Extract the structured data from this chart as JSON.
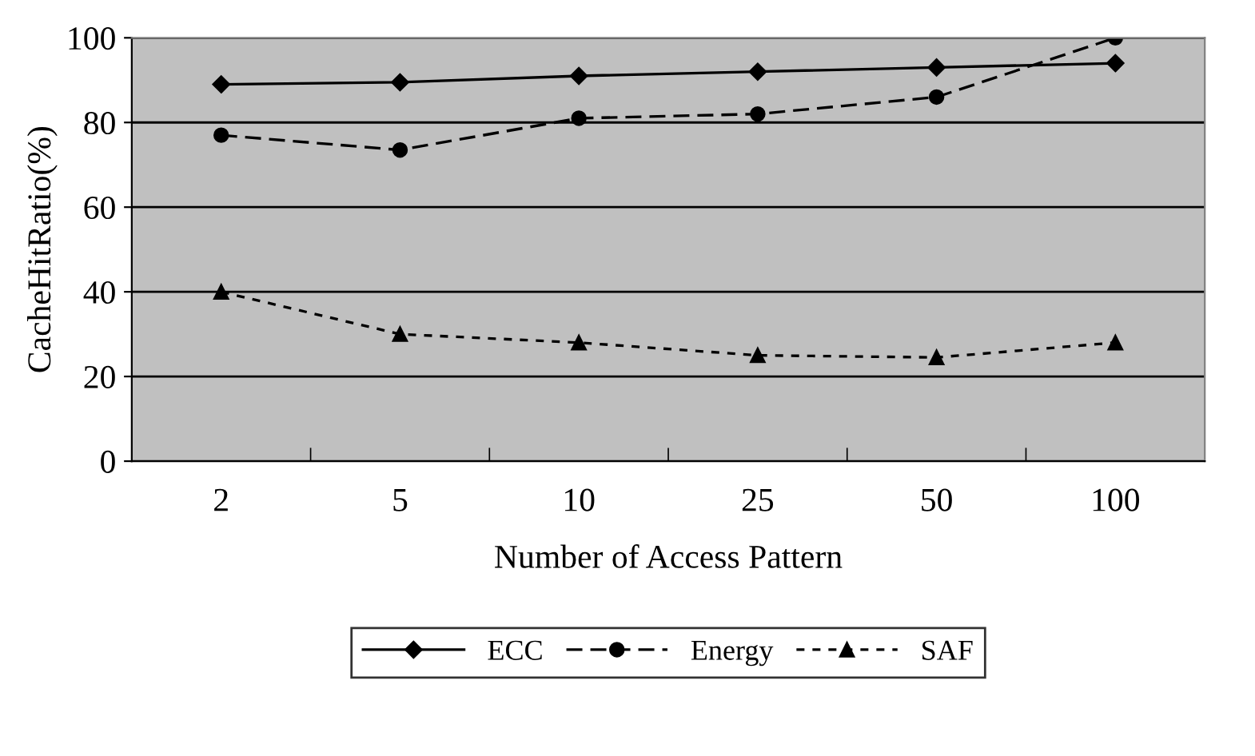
{
  "chart_data": {
    "type": "line",
    "xlabel": "Number of Access Pattern",
    "ylabel": "CacheHitRatio(%)",
    "categories": [
      "2",
      "5",
      "10",
      "25",
      "50",
      "100"
    ],
    "series": [
      {
        "name": "ECC",
        "color": "#000000",
        "values": [
          89,
          89.5,
          91,
          92,
          93,
          94
        ],
        "marker": "diamond",
        "line_style": "solid"
      },
      {
        "name": "Energy",
        "color": "#000000",
        "values": [
          77,
          73.5,
          81,
          82,
          86,
          100
        ],
        "marker": "circle",
        "line_style": "dashed"
      },
      {
        "name": "SAF",
        "color": "#000000",
        "values": [
          40,
          30,
          28,
          25,
          24.5,
          28
        ],
        "marker": "triangle",
        "line_style": "dotted"
      }
    ],
    "ylim": [
      0,
      100
    ],
    "yticks": [
      0,
      20,
      40,
      60,
      80,
      100
    ],
    "grid": "y",
    "legend": "bottom"
  }
}
